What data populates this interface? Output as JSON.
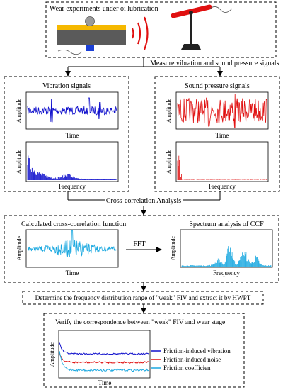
{
  "box1": {
    "title": "Wear experiments under oi lubrication"
  },
  "step1": {
    "label": "Measure vibration and sound pressure signals"
  },
  "vibration": {
    "title": "Vibration signals",
    "time_ylabel": "Amplitude",
    "time_xlabel": "Time",
    "freq_ylabel": "Amplitude",
    "freq_xlabel": "Frequency",
    "color": "#1010cc"
  },
  "sound": {
    "title": "Sound pressure signals",
    "time_ylabel": "Amplitude",
    "time_xlabel": "Time",
    "freq_ylabel": "Amplitude",
    "freq_xlabel": "Frequency",
    "color": "#e01010"
  },
  "step2": {
    "label": "Cross-correlation Analysis"
  },
  "ccf": {
    "title": "Calculated cross-correlation function",
    "ylabel": "Amplitude",
    "xlabel": "Time",
    "color": "#1aa8e0"
  },
  "fft": {
    "label": "FFT"
  },
  "spectrum": {
    "title": "Spectrum analysis of CCF",
    "ylabel": "Amplitude",
    "xlabel": "Frequency"
  },
  "step3": {
    "label": "Determine the frequency distribution range of \"weak\" FIV and extract it by HWPT"
  },
  "verify": {
    "title": "Verify the correspondence between \"weak\" FIV and wear stage",
    "ylabel": "Amplitude",
    "xlabel": "Time",
    "legend": [
      "Friction-induced vibration",
      "Friction-induced noise",
      "Friction coefficien"
    ],
    "colors": [
      "#1010cc",
      "#e01010",
      "#1aa8e0"
    ]
  }
}
